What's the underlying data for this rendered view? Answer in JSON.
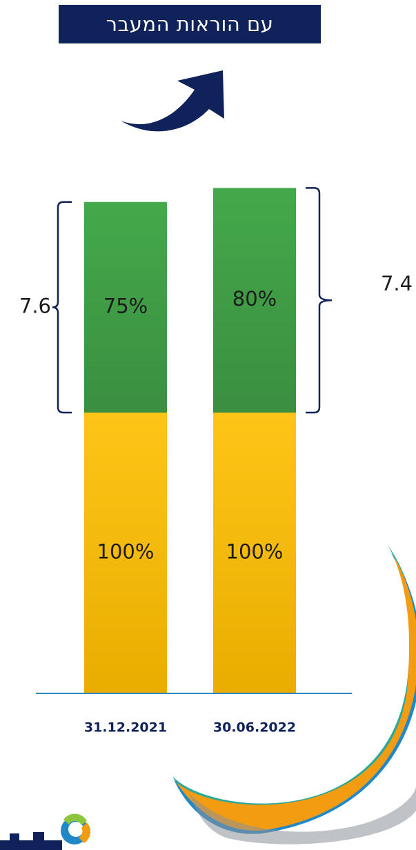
{
  "banner": {
    "text": "עם הוראות המעבר"
  },
  "chart_data": {
    "type": "bar",
    "stacked": true,
    "categories": [
      "31.12.2021",
      "30.06.2022"
    ],
    "series": [
      {
        "values": [
          100,
          100
        ],
        "labels": [
          "100%",
          "100%"
        ],
        "color": "#f3b607"
      },
      {
        "values": [
          75,
          80
        ],
        "labels": [
          "75%",
          "80%"
        ],
        "color": "#3e9b44"
      }
    ],
    "annotations": [
      {
        "category": "31.12.2021",
        "bracket_side": "left",
        "label": "7.6"
      },
      {
        "category": "30.06.2022",
        "bracket_side": "right",
        "label": "7.4"
      }
    ],
    "title": "",
    "xlabel": "",
    "ylabel": "",
    "grid": false,
    "legend": "none"
  },
  "colors": {
    "banner_bg": "#0f2259",
    "arrow": "#0f2259",
    "bracket": "#0f2259",
    "axis": "#2e86c1",
    "swoosh_orange": "#f39c12",
    "swoosh_blue": "#1e88c8",
    "swoosh_teal": "#2aa89a",
    "swoosh_grey": "#8a8f99"
  },
  "icons": {
    "arrow": "curved-arrow-up-right-icon",
    "logo": "company-logo"
  }
}
